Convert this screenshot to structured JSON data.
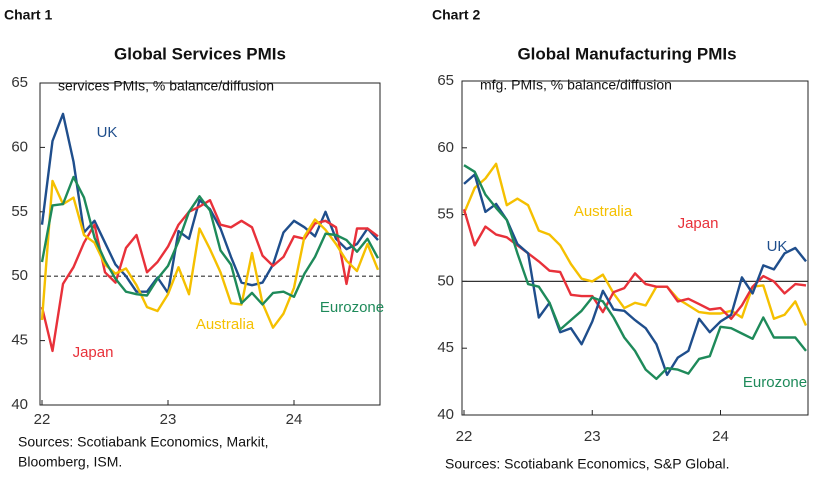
{
  "chart_data": [
    {
      "type": "line",
      "label": "Chart 1",
      "title": "Global Services PMIs",
      "subtitle": "services PMIs, % balance/diffusion",
      "sources": [
        "Sources: Scotiabank Economics, Markit,",
        "Bloomberg, ISM."
      ],
      "categories": [
        "22",
        null,
        null,
        null,
        null,
        null,
        null,
        null,
        null,
        null,
        null,
        null,
        "23",
        null,
        null,
        null,
        null,
        null,
        null,
        null,
        null,
        null,
        null,
        null,
        "24",
        null,
        null,
        null,
        null,
        null,
        null,
        null,
        null
      ],
      "ylim": [
        40,
        65
      ],
      "yticks": [
        40,
        45,
        50,
        55,
        60,
        65
      ],
      "hline": {
        "value": 50,
        "dashed": true
      },
      "series": [
        {
          "name": "UK",
          "color": "#1f4e8c",
          "values": [
            54,
            60.5,
            62.6,
            58.9,
            53.4,
            54.3,
            52.6,
            50.9,
            50.0,
            48.8,
            48.8,
            49.9,
            48.7,
            53.5,
            52.9,
            55.9,
            55.2,
            53.7,
            51.5,
            49.5,
            49.3,
            49.5,
            50.9,
            53.4,
            54.3,
            53.8,
            53.1,
            55.0,
            52.9,
            52.1,
            52.5,
            53.7,
            52.8
          ]
        },
        {
          "name": "Japan",
          "color": "#e8313a",
          "values": [
            47.6,
            44.2,
            49.4,
            50.7,
            52.6,
            54.0,
            50.3,
            49.5,
            52.2,
            53.2,
            50.3,
            51.1,
            52.3,
            54.0,
            55.0,
            55.4,
            55.9,
            54.0,
            53.8,
            54.3,
            53.8,
            51.6,
            50.8,
            51.5,
            53.1,
            52.9,
            54.1,
            54.3,
            53.8,
            49.4,
            53.7,
            53.7,
            53.1
          ]
        },
        {
          "name": "Australia",
          "color": "#f5c000",
          "values": [
            46.6,
            57.4,
            55.6,
            56.1,
            53.2,
            52.6,
            50.9,
            50.2,
            50.6,
            49.3,
            47.6,
            47.3,
            48.6,
            50.7,
            48.6,
            53.7,
            52.1,
            50.3,
            47.9,
            47.8,
            51.8,
            47.9,
            46.0,
            47.1,
            49.1,
            53.1,
            54.4,
            53.6,
            52.5,
            51.2,
            50.4,
            52.5,
            50.5
          ]
        },
        {
          "name": "Eurozone",
          "color": "#1e8a5a",
          "values": [
            51.1,
            55.5,
            55.6,
            57.7,
            56.1,
            53.0,
            51.2,
            49.8,
            48.8,
            48.6,
            48.5,
            49.8,
            50.8,
            52.7,
            55.0,
            56.2,
            55.1,
            52.0,
            50.9,
            47.9,
            48.7,
            47.8,
            48.7,
            48.8,
            48.4,
            50.2,
            51.5,
            53.3,
            53.2,
            52.8,
            51.9,
            52.9,
            51.4
          ]
        }
      ]
    },
    {
      "type": "line",
      "label": "Chart 2",
      "title": "Global Manufacturing PMIs",
      "subtitle": "mfg. PMIs, % balance/diffusion",
      "sources": [
        "Sources: Scotiabank Economics, S&P Global."
      ],
      "categories": [
        "22",
        null,
        null,
        null,
        null,
        null,
        null,
        null,
        null,
        null,
        null,
        null,
        "23",
        null,
        null,
        null,
        null,
        null,
        null,
        null,
        null,
        null,
        null,
        null,
        "24",
        null,
        null,
        null,
        null,
        null,
        null,
        null,
        null
      ],
      "ylim": [
        40,
        65
      ],
      "yticks": [
        40,
        45,
        50,
        55,
        60,
        65
      ],
      "hline": {
        "value": 50,
        "dashed": false
      },
      "series": [
        {
          "name": "Australia",
          "color": "#f5c000",
          "values": [
            55.1,
            57.0,
            57.7,
            58.8,
            55.7,
            56.2,
            55.7,
            53.8,
            53.5,
            52.7,
            51.3,
            50.2,
            50.0,
            50.5,
            49.1,
            48.0,
            48.4,
            48.2,
            49.6,
            49.6,
            48.7,
            48.2,
            47.7,
            47.6,
            47.6,
            47.8,
            47.3,
            49.6,
            49.7,
            47.2,
            47.5,
            48.5,
            46.7
          ]
        },
        {
          "name": "Japan",
          "color": "#e8313a",
          "values": [
            55.4,
            52.7,
            54.1,
            53.5,
            53.3,
            52.7,
            52.1,
            51.5,
            50.8,
            50.7,
            49.0,
            48.9,
            48.9,
            47.7,
            49.2,
            49.5,
            50.6,
            49.8,
            49.6,
            49.6,
            48.5,
            48.7,
            48.3,
            47.9,
            48.0,
            47.2,
            48.2,
            49.6,
            50.4,
            50.0,
            49.1,
            49.8,
            49.7
          ]
        },
        {
          "name": "UK",
          "color": "#1f4e8c",
          "values": [
            57.3,
            58.0,
            55.2,
            55.8,
            54.6,
            52.8,
            52.1,
            47.3,
            48.4,
            46.2,
            46.5,
            45.3,
            47.0,
            49.3,
            47.9,
            47.8,
            47.1,
            46.5,
            45.3,
            43.0,
            44.3,
            44.8,
            47.2,
            46.2,
            47.0,
            47.5,
            50.3,
            49.1,
            51.2,
            50.9,
            52.1,
            52.5,
            51.5
          ]
        },
        {
          "name": "Eurozone",
          "color": "#1e8a5a",
          "values": [
            58.7,
            58.2,
            56.5,
            55.5,
            54.6,
            52.1,
            49.8,
            49.6,
            48.4,
            46.4,
            47.1,
            47.8,
            48.8,
            48.5,
            47.3,
            45.8,
            44.8,
            43.4,
            42.7,
            43.5,
            43.4,
            43.1,
            44.2,
            44.4,
            46.6,
            46.5,
            46.1,
            45.7,
            47.3,
            45.8,
            45.8,
            45.8,
            44.8
          ]
        }
      ]
    }
  ]
}
